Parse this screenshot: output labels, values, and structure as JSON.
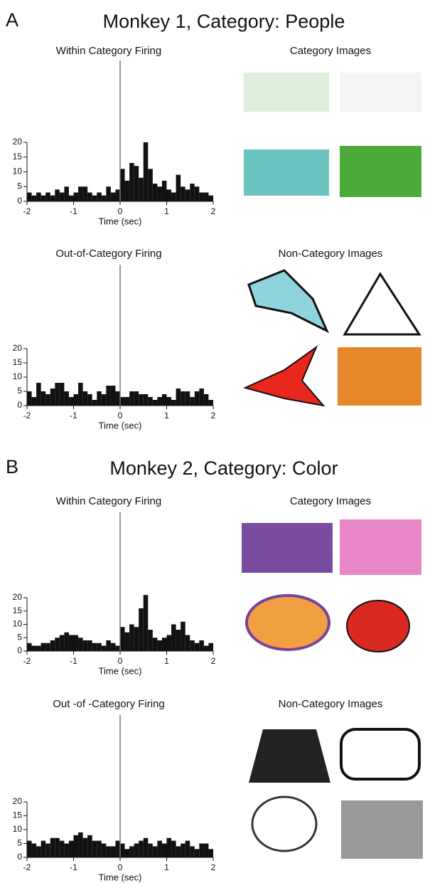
{
  "panels": [
    {
      "label": "A",
      "title": "Monkey 1, Category: People",
      "category_images_label": "Category Images",
      "non_category_images_label": "Non-Category Images"
    },
    {
      "label": "B",
      "title": "Monkey 2, Category: Color",
      "category_images_label": "Category Images",
      "non_category_images_label": "Non-Category Images"
    }
  ],
  "chart_data": [
    {
      "type": "histogram",
      "title": "Within Category Firing",
      "x_label": "Time (sec)",
      "bins": [
        -2,
        -1.9,
        -1.8,
        -1.7,
        -1.6,
        -1.5,
        -1.4,
        -1.3,
        -1.2,
        -1.1,
        -1,
        -0.9,
        -0.8,
        -0.7,
        -0.6,
        -0.5,
        -0.4,
        -0.3,
        -0.2,
        -0.1,
        0,
        0.1,
        0.2,
        0.3,
        0.4,
        0.5,
        0.6,
        0.7,
        0.8,
        0.9,
        1,
        1.1,
        1.2,
        1.3,
        1.4,
        1.5,
        1.6,
        1.7,
        1.8,
        1.9,
        2
      ],
      "values": [
        3,
        2,
        3,
        2,
        3,
        2,
        4,
        3,
        5,
        2,
        3,
        5,
        5,
        3,
        2,
        3,
        2,
        5,
        3,
        4,
        11,
        7,
        13,
        12,
        8,
        20,
        11,
        6,
        5,
        7,
        4,
        3,
        9,
        5,
        4,
        6,
        5,
        3,
        3,
        2
      ],
      "color": "#111111",
      "xlim": [
        -2,
        2
      ],
      "xticks": [
        -2,
        -1,
        0,
        1,
        2
      ],
      "ylim": [
        0,
        20
      ],
      "yticks": [
        0,
        5,
        10,
        15,
        20
      ]
    },
    {
      "type": "histogram",
      "title": "Out-of-Category Firing",
      "x_label": "Time (sec)",
      "bins": [
        -2,
        -1.9,
        -1.8,
        -1.7,
        -1.6,
        -1.5,
        -1.4,
        -1.3,
        -1.2,
        -1.1,
        -1,
        -0.9,
        -0.8,
        -0.7,
        -0.6,
        -0.5,
        -0.4,
        -0.3,
        -0.2,
        -0.1,
        0,
        0.1,
        0.2,
        0.3,
        0.4,
        0.5,
        0.6,
        0.7,
        0.8,
        0.9,
        1,
        1.1,
        1.2,
        1.3,
        1.4,
        1.5,
        1.6,
        1.7,
        1.8,
        1.9,
        2
      ],
      "values": [
        5,
        3,
        8,
        5,
        4,
        6,
        8,
        8,
        5,
        3,
        4,
        8,
        5,
        4,
        2,
        5,
        4,
        7,
        7,
        5,
        3,
        3,
        5,
        5,
        4,
        4,
        3,
        2,
        3,
        4,
        3,
        2,
        6,
        5,
        5,
        3,
        5,
        6,
        4,
        2
      ],
      "color": "#111111",
      "xlim": [
        -2,
        2
      ],
      "xticks": [
        -2,
        -1,
        0,
        1,
        2
      ],
      "ylim": [
        0,
        20
      ],
      "yticks": [
        0,
        5,
        10,
        15,
        20
      ]
    },
    {
      "type": "histogram",
      "title": "Within Category Firing",
      "x_label": "Time (sec)",
      "bins": [
        -2,
        -1.9,
        -1.8,
        -1.7,
        -1.6,
        -1.5,
        -1.4,
        -1.3,
        -1.2,
        -1.1,
        -1,
        -0.9,
        -0.8,
        -0.7,
        -0.6,
        -0.5,
        -0.4,
        -0.3,
        -0.2,
        -0.1,
        0,
        0.1,
        0.2,
        0.3,
        0.4,
        0.5,
        0.6,
        0.7,
        0.8,
        0.9,
        1,
        1.1,
        1.2,
        1.3,
        1.4,
        1.5,
        1.6,
        1.7,
        1.8,
        1.9,
        2
      ],
      "values": [
        3,
        2,
        2,
        3,
        3,
        4,
        5,
        6,
        7,
        6,
        6,
        5,
        4,
        4,
        3,
        3,
        2,
        4,
        3,
        2,
        9,
        7,
        10,
        9,
        16,
        21,
        8,
        5,
        4,
        5,
        6,
        10,
        8,
        11,
        6,
        4,
        3,
        4,
        2,
        3
      ],
      "color": "#111111",
      "xlim": [
        -2,
        2
      ],
      "xticks": [
        -2,
        -1,
        0,
        1,
        2
      ],
      "ylim": [
        0,
        20
      ],
      "yticks": [
        0,
        5,
        10,
        15,
        20
      ]
    },
    {
      "type": "histogram",
      "title": "Out -of -Category Firing",
      "x_label": "Time (sec)",
      "bins": [
        -2,
        -1.9,
        -1.8,
        -1.7,
        -1.6,
        -1.5,
        -1.4,
        -1.3,
        -1.2,
        -1.1,
        -1,
        -0.9,
        -0.8,
        -0.7,
        -0.6,
        -0.5,
        -0.4,
        -0.3,
        -0.2,
        -0.1,
        0,
        0.1,
        0.2,
        0.3,
        0.4,
        0.5,
        0.6,
        0.7,
        0.8,
        0.9,
        1,
        1.1,
        1.2,
        1.3,
        1.4,
        1.5,
        1.6,
        1.7,
        1.8,
        1.9,
        2
      ],
      "values": [
        6,
        5,
        4,
        6,
        5,
        7,
        7,
        6,
        5,
        6,
        8,
        9,
        7,
        8,
        6,
        6,
        5,
        4,
        4,
        6,
        5,
        3,
        4,
        5,
        6,
        7,
        5,
        4,
        6,
        5,
        7,
        6,
        4,
        5,
        6,
        4,
        3,
        5,
        5,
        3
      ],
      "color": "#111111",
      "xlim": [
        -2,
        2
      ],
      "xticks": [
        -2,
        -1,
        0,
        1,
        2
      ],
      "ylim": [
        0,
        20
      ],
      "yticks": [
        0,
        5,
        10,
        15,
        20
      ]
    }
  ]
}
